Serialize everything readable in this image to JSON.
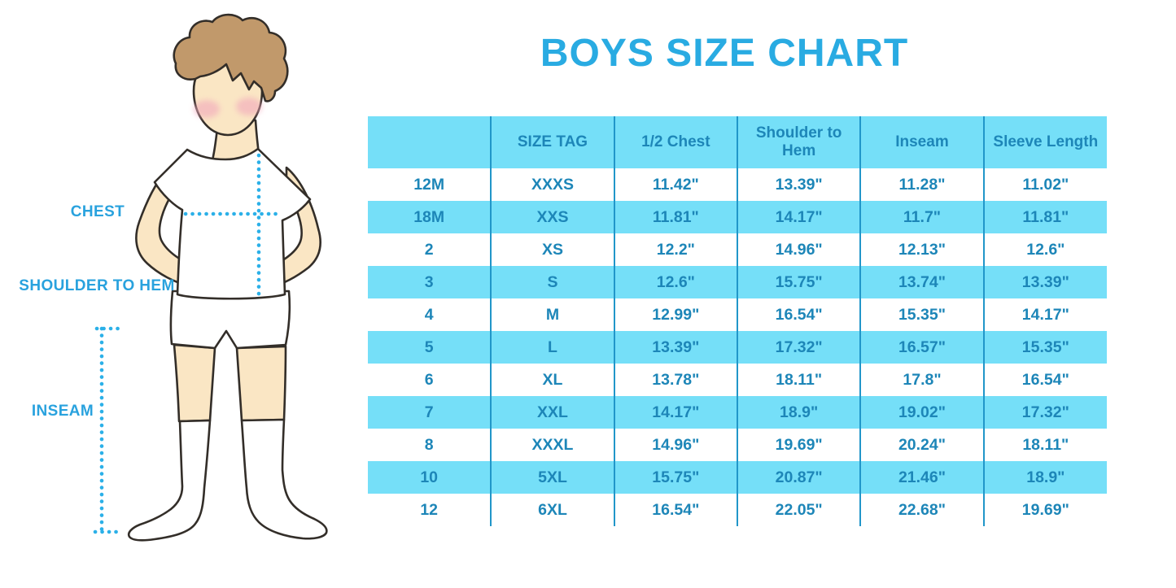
{
  "title": "BOYS SIZE CHART",
  "figure": {
    "description": "outlined illustration of a boy in white t-shirt, shorts and knee socks with dotted measurement guides",
    "labels": {
      "chest": "CHEST",
      "shoulder_to_hem": "SHOULDER TO HEM",
      "inseam": "INSEAM"
    }
  },
  "chart_data": {
    "type": "table",
    "title": "BOYS SIZE CHART",
    "columns": [
      "",
      "SIZE TAG",
      "1/2 Chest",
      "Shoulder to Hem",
      "Inseam",
      "Sleeve Length"
    ],
    "rows": [
      [
        "12M",
        "XXXS",
        "11.42\"",
        "13.39\"",
        "11.28\"",
        "11.02\""
      ],
      [
        "18M",
        "XXS",
        "11.81\"",
        "14.17\"",
        "11.7\"",
        "11.81\""
      ],
      [
        "2",
        "XS",
        "12.2\"",
        "14.96\"",
        "12.13\"",
        "12.6\""
      ],
      [
        "3",
        "S",
        "12.6\"",
        "15.75\"",
        "13.74\"",
        "13.39\""
      ],
      [
        "4",
        "M",
        "12.99\"",
        "16.54\"",
        "15.35\"",
        "14.17\""
      ],
      [
        "5",
        "L",
        "13.39\"",
        "17.32\"",
        "16.57\"",
        "15.35\""
      ],
      [
        "6",
        "XL",
        "13.78\"",
        "18.11\"",
        "17.8\"",
        "16.54\""
      ],
      [
        "7",
        "XXL",
        "14.17\"",
        "18.9\"",
        "19.02\"",
        "17.32\""
      ],
      [
        "8",
        "XXXL",
        "14.96\"",
        "19.69\"",
        "20.24\"",
        "18.11\""
      ],
      [
        "10",
        "5XL",
        "15.75\"",
        "20.87\"",
        "21.46\"",
        "18.9\""
      ],
      [
        "12",
        "6XL",
        "16.54\"",
        "22.05\"",
        "22.68\"",
        "19.69\""
      ]
    ],
    "layout": {
      "zebra_striping": "header and even data rows light blue, others white",
      "grid": "vertical column dividers only, no outer border"
    }
  },
  "colors": {
    "title-blue": "#29ABE2",
    "label-blue": "#29A2DE",
    "stripe-blue": "#75DFF8",
    "divider-blue": "#2196C9",
    "table-text-blue": "#1D86B8",
    "dotted-line-blue": "#2BB0E8",
    "skin": "#FAE6C4",
    "hair-brown": "#C1996B",
    "blush-pink": "#F2A9BC",
    "outline-dark": "#332E29",
    "garment-white": "#FFFFFF"
  }
}
